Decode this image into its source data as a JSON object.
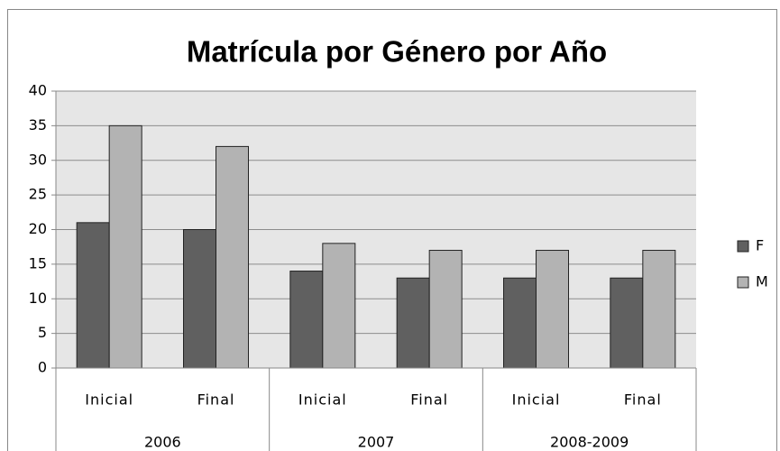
{
  "chart_data": {
    "type": "bar",
    "title": "Matrícula por Género por Año",
    "categories": [
      "Inicial",
      "Final",
      "Inicial",
      "Final",
      "Inicial",
      "Final"
    ],
    "groups": [
      "2006",
      "2007",
      "2008-2009"
    ],
    "series": [
      {
        "name": "F",
        "color": "#606060",
        "values": [
          21,
          20,
          14,
          13,
          13,
          13
        ]
      },
      {
        "name": "M",
        "color": "#b3b3b3",
        "values": [
          35,
          32,
          18,
          17,
          17,
          17
        ]
      }
    ],
    "ylim": [
      0,
      40
    ],
    "yticks": [
      0,
      5,
      10,
      15,
      20,
      25,
      30,
      35,
      40
    ],
    "grid": true,
    "legend": "right"
  }
}
